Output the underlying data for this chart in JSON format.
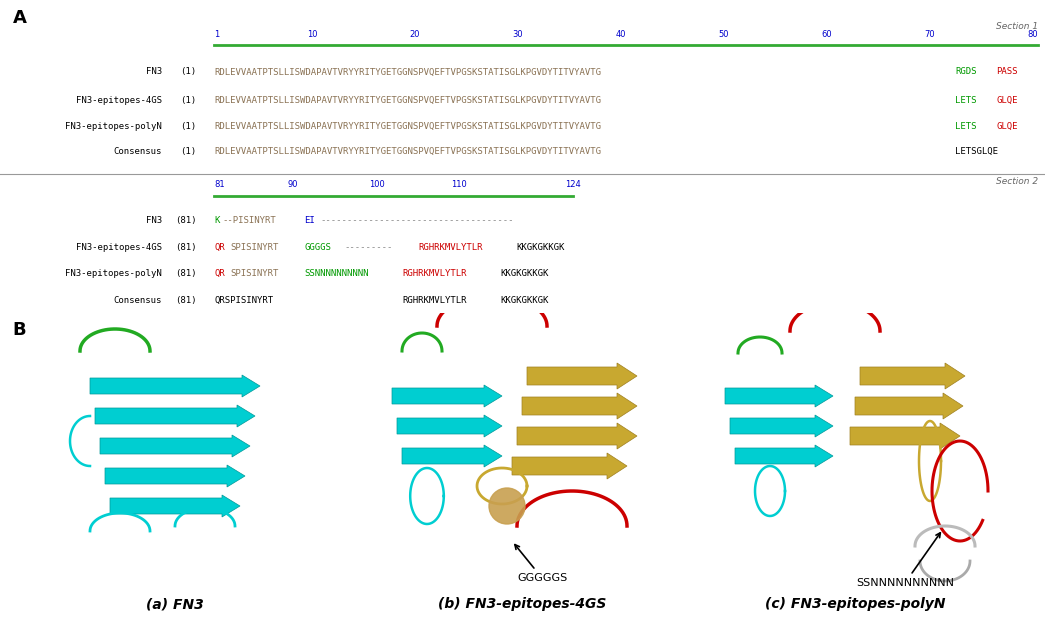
{
  "title_A": "A",
  "title_B": "B",
  "section1_label": "Section 1",
  "section2_label": "Section 2",
  "row_labels_sec1": [
    "FN3",
    "FN3-epitopes-4GS",
    "FN3-epitopes-polyN",
    "Consensus"
  ],
  "row_labels_sec2": [
    "FN3",
    "FN3-epitopes-4GS",
    "FN3-epitopes-polyN",
    "Consensus"
  ],
  "seq_common": "RDLEVVAATPTSLLISWDAPAVTVRYYRITYGETGGNSPVQEFTVPGSKSTATISGLKPGVDYTITVYAVTG",
  "label_a": "(a) FN3",
  "label_b": "(b) FN3-epitopes-4GS",
  "label_c": "(c) FN3-epitopes-polyN",
  "arrow_label_b": "GGGGGS",
  "arrow_label_c": "SSNNNNNNNNNN",
  "bg_color": "#ffffff",
  "text_color_black": "#1a1a1a",
  "text_color_red": "#cc0000",
  "text_color_green": "#009900",
  "text_color_blue": "#0000cc",
  "text_color_gray": "#888888",
  "text_color_olive": "#8B7355",
  "highlight_yellow": "#ffffc0",
  "ruler_color": "#0000cc",
  "bar_color": "#33aa33",
  "sep_color": "#999999",
  "cyan_color": "#00CED1",
  "gold_color": "#C8A830",
  "red_color": "#cc0000",
  "green_color": "#22aa22"
}
